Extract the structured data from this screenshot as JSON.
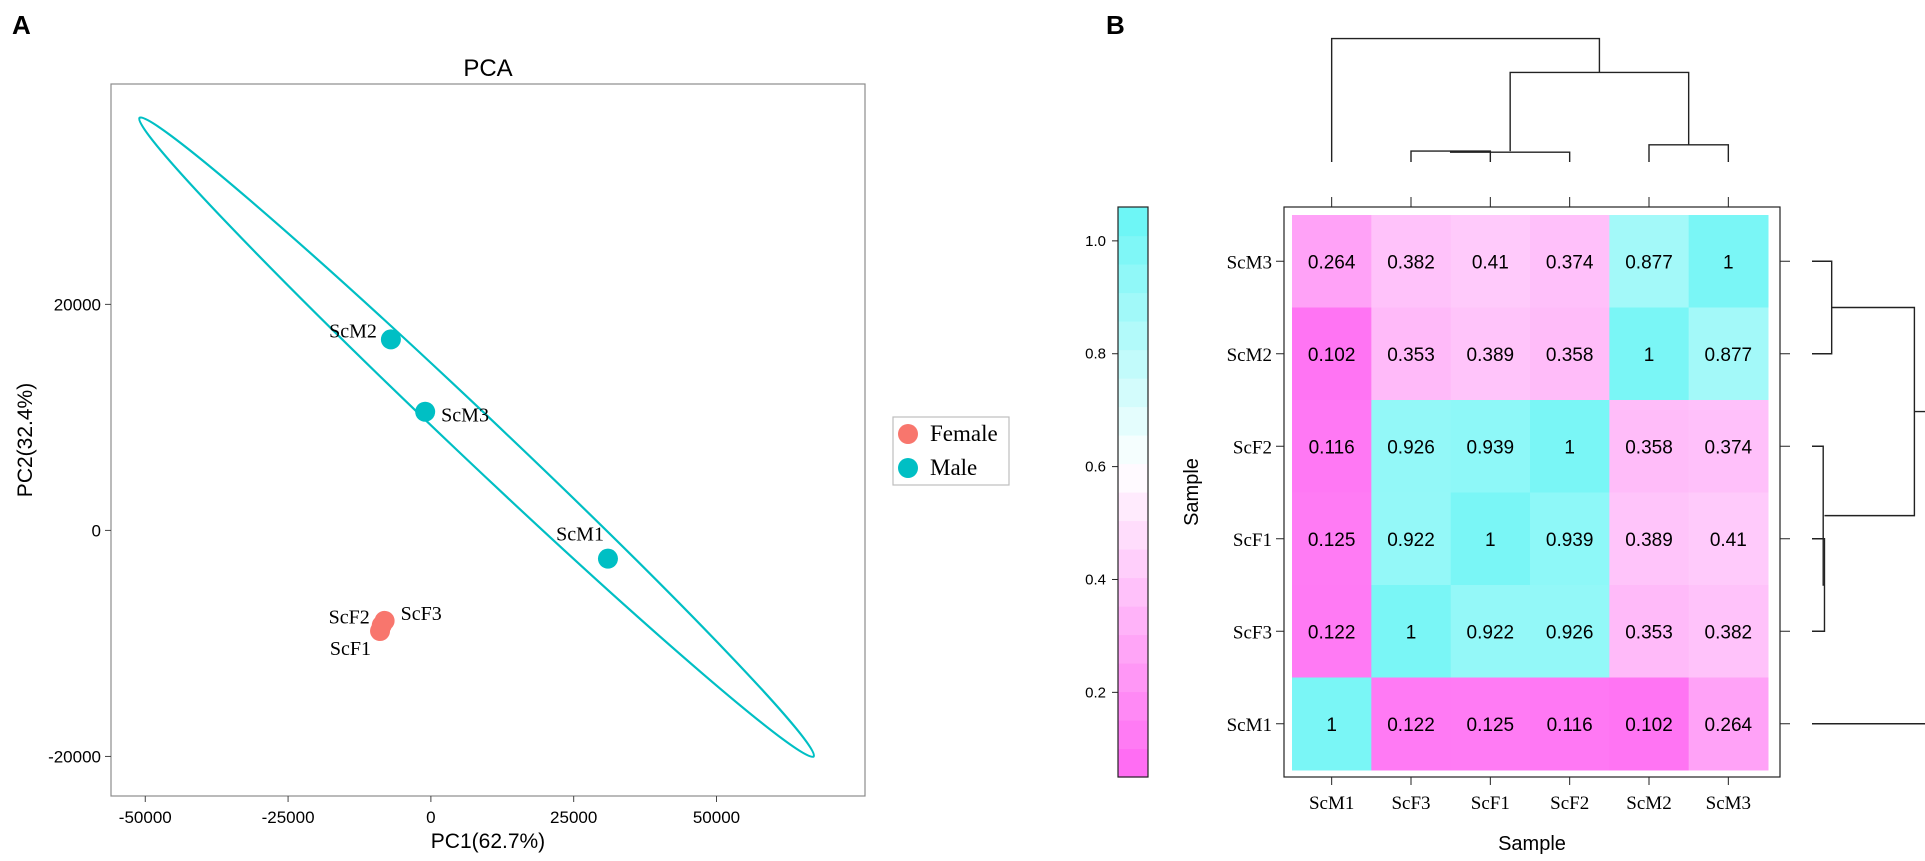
{
  "panels": {
    "a_label": "A",
    "b_label": "B"
  },
  "chart_data": [
    {
      "type": "scatter",
      "title": "PCA",
      "xlabel": "PC1(62.7%)",
      "ylabel": "PC2(32.4%)",
      "xlim": [
        -56000,
        76000
      ],
      "ylim": [
        -23500,
        39500
      ],
      "xticks": [
        -50000,
        -25000,
        0,
        25000,
        50000
      ],
      "xtick_labels": [
        "-50000",
        "-25000",
        "0",
        "25000",
        "50000"
      ],
      "yticks": [
        -20000,
        0,
        20000
      ],
      "ytick_labels": [
        "-20000",
        "0",
        "20000"
      ],
      "grid": false,
      "legend_position": "right",
      "series": [
        {
          "name": "Female",
          "color": "#f8766d",
          "points": [
            {
              "label": "ScF2",
              "x": -8600,
              "y": -8400
            },
            {
              "label": "ScF3",
              "x": -8100,
              "y": -8000
            },
            {
              "label": "ScF1",
              "x": -8900,
              "y": -8900
            }
          ]
        },
        {
          "name": "Male",
          "color": "#00bfc4",
          "points": [
            {
              "label": "ScM2",
              "x": -7000,
              "y": 16900
            },
            {
              "label": "ScM3",
              "x": -1000,
              "y": 10500
            },
            {
              "label": "ScM1",
              "x": 31000,
              "y": -2500
            }
          ]
        }
      ],
      "ellipse": {
        "group": "Male",
        "color": "#00bfc4",
        "tip_a": {
          "x": -51000,
          "y": 36500
        },
        "tip_b": {
          "x": 67000,
          "y": -20000
        },
        "minor_half_width": 1950
      }
    },
    {
      "type": "heatmap",
      "xlabel": "Sample",
      "ylabel": "Sample",
      "x_labels": [
        "ScM1",
        "ScF3",
        "ScF1",
        "ScF2",
        "ScM2",
        "ScM3"
      ],
      "y_labels_top_to_bottom": [
        "ScM3",
        "ScM2",
        "ScF2",
        "ScF1",
        "ScF3",
        "ScM1"
      ],
      "values_top_to_bottom": [
        [
          "0.264",
          "0.382",
          "0.41",
          "0.374",
          "0.877",
          "1"
        ],
        [
          "0.102",
          "0.353",
          "0.389",
          "0.358",
          "1",
          "0.877"
        ],
        [
          "0.116",
          "0.926",
          "0.939",
          "1",
          "0.358",
          "0.374"
        ],
        [
          "0.125",
          "0.922",
          "1",
          "0.939",
          "0.389",
          "0.41"
        ],
        [
          "0.122",
          "1",
          "0.922",
          "0.926",
          "0.353",
          "0.382"
        ],
        [
          "1",
          "0.122",
          "0.125",
          "0.116",
          "0.102",
          "0.264"
        ]
      ],
      "colorbar": {
        "range": [
          0.05,
          1.06
        ],
        "ticks": [
          0.2,
          0.4,
          0.6,
          0.8,
          1.0
        ],
        "tick_labels": [
          "0.2",
          "0.4",
          "0.6",
          "0.8",
          "1.0"
        ],
        "low_color": "#ff66f2",
        "mid_color": "#ffffff",
        "high_color": "#66f5f5"
      },
      "dendrogram": {
        "merges": [
          {
            "a": "ScF3",
            "b": "ScF1",
            "height": 0.078
          },
          {
            "a": "ScF3+ScF1",
            "b": "ScF2",
            "height": 0.07
          },
          {
            "a": "ScM2",
            "b": "ScM3",
            "height": 0.123
          },
          {
            "a": "F",
            "b": "M",
            "height": 0.64
          },
          {
            "a": "ScM1",
            "b": "rest",
            "height": 0.882
          }
        ]
      }
    }
  ]
}
